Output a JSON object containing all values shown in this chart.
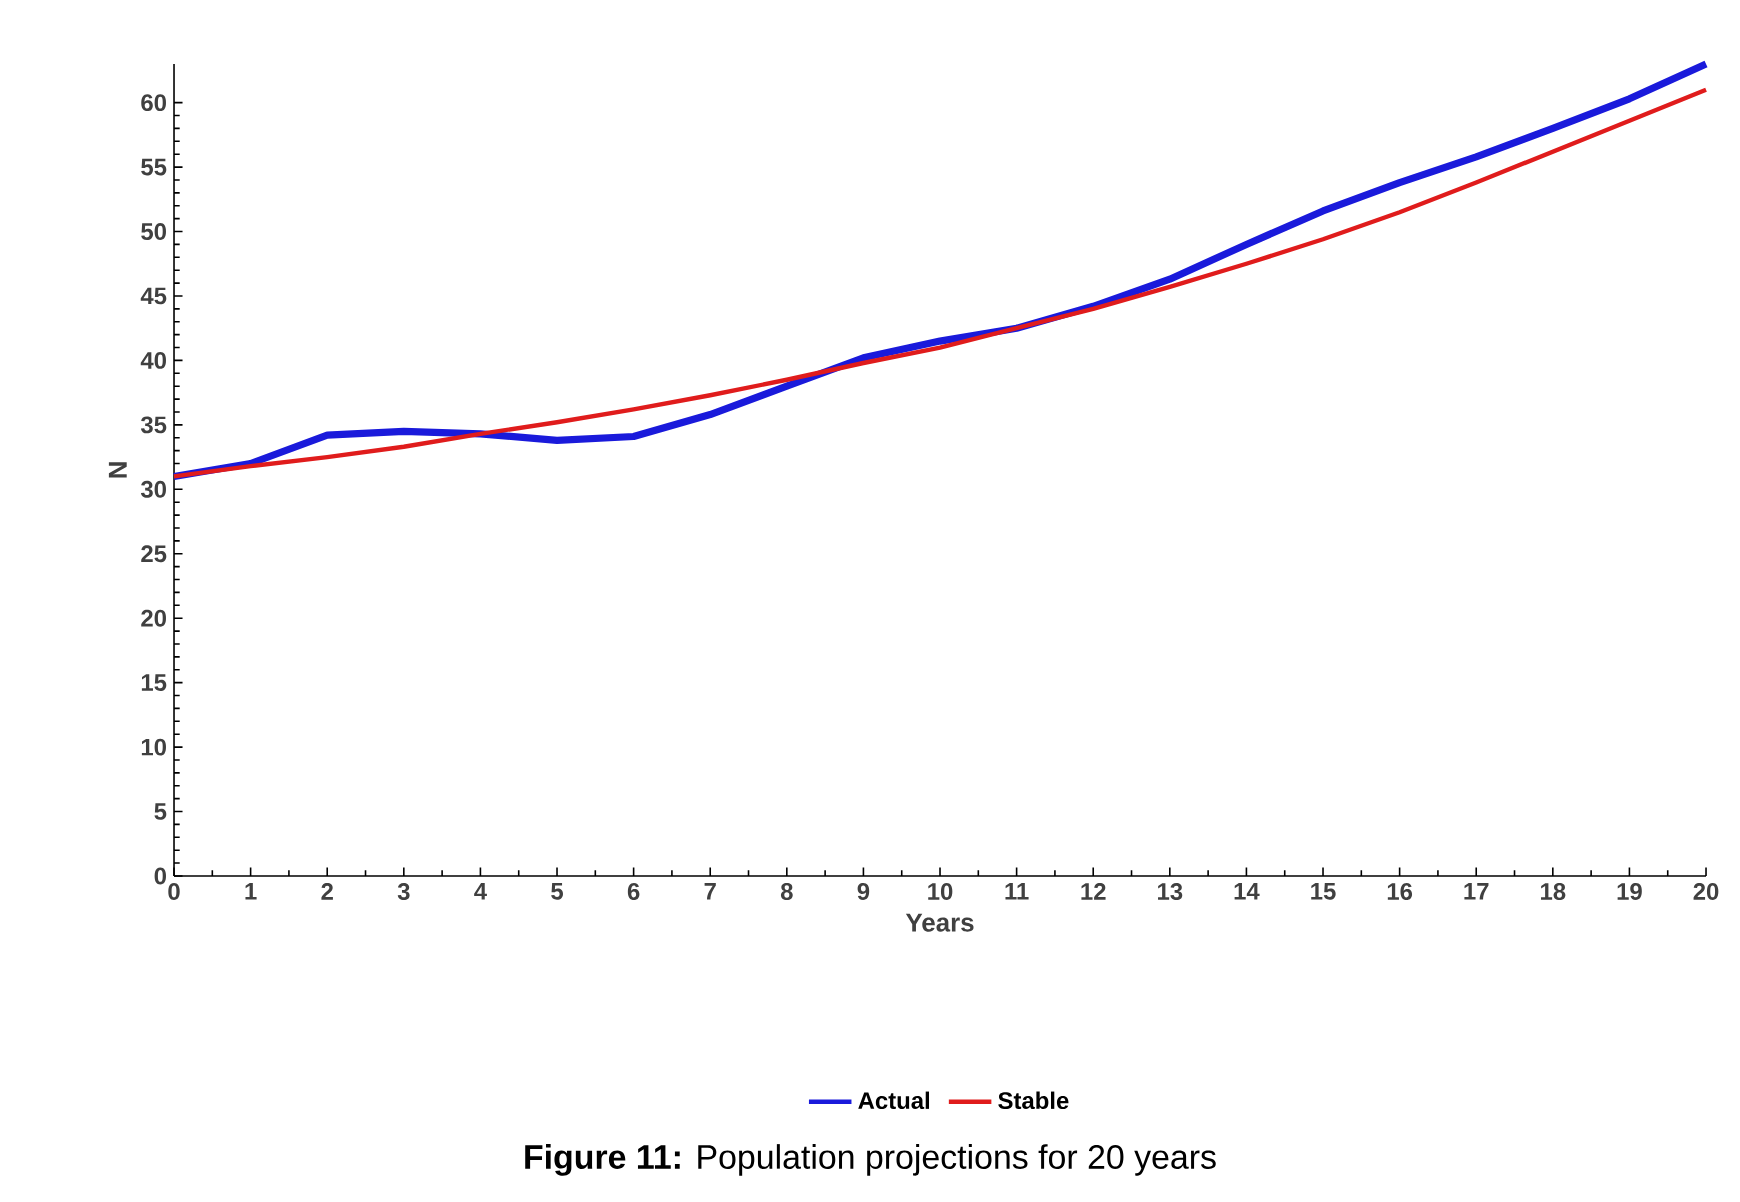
{
  "chart_data": {
    "type": "line",
    "title": "**Figure 11:** Population projections for 20 years",
    "xlabel": "Years",
    "ylabel": "N",
    "x": [
      0,
      1,
      2,
      3,
      4,
      5,
      6,
      7,
      8,
      9,
      10,
      11,
      12,
      13,
      14,
      15,
      16,
      17,
      18,
      19,
      20
    ],
    "series": [
      {
        "name": "Actual",
        "color": "#1a1adb",
        "values": [
          31,
          32,
          34.2,
          34.5,
          34.3,
          33.8,
          34.1,
          35.8,
          38,
          40.2,
          41.5,
          42.5,
          44.2,
          46.3,
          49,
          51.6,
          53.8,
          55.8,
          58,
          60.3,
          63
        ]
      },
      {
        "name": "Stable",
        "color": "#e01c1c",
        "values": [
          31,
          31.8,
          32.5,
          33.3,
          34.3,
          35.2,
          36.2,
          37.3,
          38.5,
          39.8,
          41,
          42.5,
          44,
          45.7,
          47.5,
          49.4,
          51.5,
          53.8,
          56.2,
          58.6,
          61
        ]
      }
    ],
    "xlim": [
      0,
      20
    ],
    "xticks": [
      0,
      1,
      2,
      3,
      4,
      5,
      6,
      7,
      8,
      9,
      10,
      11,
      12,
      13,
      14,
      15,
      16,
      17,
      18,
      19,
      20
    ],
    "ylim": [
      0,
      63
    ],
    "yticks": [
      0,
      5,
      10,
      15,
      20,
      25,
      30,
      35,
      40,
      45,
      50,
      55,
      60
    ],
    "legend": "bottom",
    "grid": false,
    "marker": "none",
    "line_style": "solid"
  }
}
